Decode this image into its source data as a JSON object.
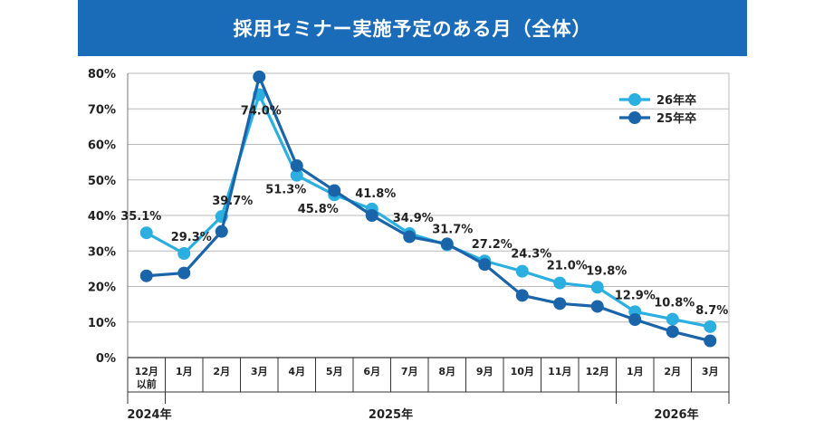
{
  "title": "採用セミナー実施予定のある月（全体）",
  "colors": {
    "header_bg": "#1a6bb8",
    "series_26": "#2baee0",
    "series_25": "#1a64aa",
    "grid": "#b9b9b9",
    "text": "#222222"
  },
  "chart_data": {
    "type": "line",
    "title": "採用セミナー実施予定のある月（全体）",
    "ylim": [
      0,
      80
    ],
    "yticks": [
      "0%",
      "10%",
      "20%",
      "30%",
      "40%",
      "50%",
      "60%",
      "70%",
      "80%"
    ],
    "categories": [
      "12月\n以前",
      "1月",
      "2月",
      "3月",
      "4月",
      "5月",
      "6月",
      "7月",
      "8月",
      "9月",
      "10月",
      "11月",
      "12月",
      "1月",
      "2月",
      "3月"
    ],
    "year_labels": [
      {
        "label": "2024年",
        "start": 0,
        "end": 0
      },
      {
        "label": "2025年",
        "start": 1,
        "end": 12
      },
      {
        "label": "2026年",
        "start": 13,
        "end": 15
      }
    ],
    "legend_position": "top-right",
    "series": [
      {
        "name": "26年卒",
        "color": "#2baee0",
        "values": [
          35.1,
          29.3,
          39.7,
          74.0,
          51.3,
          45.8,
          41.8,
          34.9,
          31.7,
          27.2,
          24.3,
          21.0,
          19.8,
          12.9,
          10.8,
          8.7
        ],
        "data_labels": [
          "35.1%",
          "29.3%",
          "39.7%",
          "74.0%",
          "51.3%",
          "45.8%",
          "41.8%",
          "34.9%",
          "31.7%",
          "27.2%",
          "24.3%",
          "21.0%",
          "19.8%",
          "12.9%",
          "10.8%",
          "8.7%"
        ]
      },
      {
        "name": "25年卒",
        "color": "#1a64aa",
        "values": [
          23.0,
          23.8,
          35.5,
          79.0,
          54.0,
          47.0,
          40.0,
          34.0,
          32.0,
          26.2,
          17.5,
          15.2,
          14.4,
          10.7,
          7.3,
          4.7
        ]
      }
    ]
  }
}
